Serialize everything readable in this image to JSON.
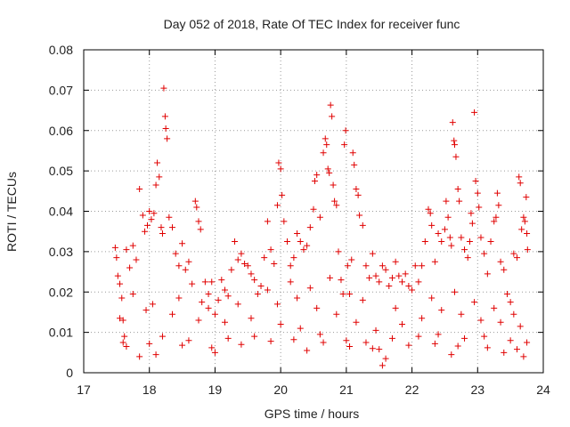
{
  "chart_data": {
    "type": "scatter",
    "title": "Day 052 of 2018, Rate Of TEC Index for receiver func",
    "xlabel": "GPS time / hours",
    "ylabel": "ROTI / TECUs",
    "xlim": [
      17,
      24
    ],
    "ylim": [
      0,
      0.08
    ],
    "grid": true,
    "marker": "+",
    "color": "#e00000",
    "x_ticks": [
      {
        "value": 17,
        "label": "17"
      },
      {
        "value": 18,
        "label": "18"
      },
      {
        "value": 19,
        "label": "19"
      },
      {
        "value": 20,
        "label": "20"
      },
      {
        "value": 21,
        "label": "21"
      },
      {
        "value": 22,
        "label": "22"
      },
      {
        "value": 23,
        "label": "23"
      },
      {
        "value": 24,
        "label": "24"
      }
    ],
    "y_ticks": [
      {
        "value": 0,
        "label": "0"
      },
      {
        "value": 0.01,
        "label": "0.01"
      },
      {
        "value": 0.02,
        "label": "0.02"
      },
      {
        "value": 0.03,
        "label": "0.03"
      },
      {
        "value": 0.04,
        "label": "0.04"
      },
      {
        "value": 0.05,
        "label": "0.05"
      },
      {
        "value": 0.06,
        "label": "0.06"
      },
      {
        "value": 0.07,
        "label": "0.07"
      },
      {
        "value": 0.08,
        "label": "0.08"
      }
    ],
    "points": [
      [
        17.48,
        0.031
      ],
      [
        17.5,
        0.0285
      ],
      [
        17.52,
        0.024
      ],
      [
        17.55,
        0.022
      ],
      [
        17.58,
        0.0185
      ],
      [
        17.6,
        0.013
      ],
      [
        17.62,
        0.009
      ],
      [
        17.65,
        0.0305
      ],
      [
        17.7,
        0.026
      ],
      [
        17.75,
        0.0315
      ],
      [
        17.8,
        0.028
      ],
      [
        17.85,
        0.0455
      ],
      [
        17.9,
        0.039
      ],
      [
        17.93,
        0.035
      ],
      [
        17.97,
        0.0365
      ],
      [
        18.0,
        0.04
      ],
      [
        18.03,
        0.038
      ],
      [
        18.07,
        0.0395
      ],
      [
        18.1,
        0.0465
      ],
      [
        18.12,
        0.052
      ],
      [
        18.15,
        0.0485
      ],
      [
        18.18,
        0.036
      ],
      [
        18.2,
        0.0345
      ],
      [
        18.22,
        0.0705
      ],
      [
        18.24,
        0.0635
      ],
      [
        18.25,
        0.0605
      ],
      [
        18.27,
        0.058
      ],
      [
        18.3,
        0.0385
      ],
      [
        18.35,
        0.036
      ],
      [
        18.4,
        0.0295
      ],
      [
        18.45,
        0.0265
      ],
      [
        18.5,
        0.032
      ],
      [
        18.55,
        0.0255
      ],
      [
        18.6,
        0.0275
      ],
      [
        18.65,
        0.022
      ],
      [
        18.7,
        0.0425
      ],
      [
        18.72,
        0.041
      ],
      [
        18.75,
        0.0375
      ],
      [
        18.78,
        0.0355
      ],
      [
        18.8,
        0.0175
      ],
      [
        18.85,
        0.0225
      ],
      [
        18.9,
        0.0195
      ],
      [
        18.95,
        0.0225
      ],
      [
        19.0,
        0.0145
      ],
      [
        19.05,
        0.018
      ],
      [
        19.1,
        0.023
      ],
      [
        19.15,
        0.0205
      ],
      [
        19.2,
        0.019
      ],
      [
        19.25,
        0.0255
      ],
      [
        19.3,
        0.0325
      ],
      [
        19.35,
        0.028
      ],
      [
        19.4,
        0.0295
      ],
      [
        19.45,
        0.027
      ],
      [
        19.5,
        0.0265
      ],
      [
        19.55,
        0.0245
      ],
      [
        19.6,
        0.023
      ],
      [
        19.65,
        0.0195
      ],
      [
        19.7,
        0.0215
      ],
      [
        19.75,
        0.0285
      ],
      [
        19.8,
        0.0375
      ],
      [
        19.85,
        0.0305
      ],
      [
        19.9,
        0.027
      ],
      [
        19.95,
        0.0415
      ],
      [
        19.97,
        0.052
      ],
      [
        20.0,
        0.0505
      ],
      [
        20.02,
        0.044
      ],
      [
        20.05,
        0.0375
      ],
      [
        20.1,
        0.0325
      ],
      [
        20.15,
        0.0265
      ],
      [
        20.2,
        0.0285
      ],
      [
        20.25,
        0.0345
      ],
      [
        20.3,
        0.0325
      ],
      [
        20.35,
        0.0305
      ],
      [
        20.4,
        0.0315
      ],
      [
        20.45,
        0.036
      ],
      [
        20.5,
        0.0405
      ],
      [
        20.52,
        0.0475
      ],
      [
        20.55,
        0.049
      ],
      [
        20.6,
        0.0385
      ],
      [
        20.65,
        0.0545
      ],
      [
        20.68,
        0.058
      ],
      [
        20.7,
        0.0565
      ],
      [
        20.72,
        0.0505
      ],
      [
        20.74,
        0.0495
      ],
      [
        20.76,
        0.0663
      ],
      [
        20.78,
        0.0635
      ],
      [
        20.8,
        0.0465
      ],
      [
        20.82,
        0.0425
      ],
      [
        20.85,
        0.0415
      ],
      [
        20.88,
        0.03
      ],
      [
        20.92,
        0.023
      ],
      [
        20.95,
        0.0195
      ],
      [
        20.97,
        0.0565
      ],
      [
        20.99,
        0.06
      ],
      [
        21.02,
        0.0265
      ],
      [
        21.05,
        0.0195
      ],
      [
        21.08,
        0.028
      ],
      [
        21.1,
        0.0545
      ],
      [
        21.12,
        0.0515
      ],
      [
        21.15,
        0.0455
      ],
      [
        21.18,
        0.044
      ],
      [
        21.2,
        0.039
      ],
      [
        21.25,
        0.0365
      ],
      [
        21.3,
        0.0265
      ],
      [
        21.35,
        0.0235
      ],
      [
        21.4,
        0.0295
      ],
      [
        21.45,
        0.024
      ],
      [
        21.5,
        0.0225
      ],
      [
        21.55,
        0.0265
      ],
      [
        21.6,
        0.0255
      ],
      [
        21.65,
        0.0215
      ],
      [
        21.7,
        0.0235
      ],
      [
        21.75,
        0.0275
      ],
      [
        21.8,
        0.024
      ],
      [
        21.85,
        0.0225
      ],
      [
        21.9,
        0.0245
      ],
      [
        21.95,
        0.0215
      ],
      [
        22.0,
        0.0205
      ],
      [
        22.05,
        0.0265
      ],
      [
        22.1,
        0.0225
      ],
      [
        22.15,
        0.0265
      ],
      [
        22.2,
        0.0325
      ],
      [
        22.25,
        0.0405
      ],
      [
        22.28,
        0.0395
      ],
      [
        22.3,
        0.0365
      ],
      [
        22.35,
        0.0275
      ],
      [
        22.4,
        0.0345
      ],
      [
        22.45,
        0.0325
      ],
      [
        22.5,
        0.0355
      ],
      [
        22.52,
        0.0425
      ],
      [
        22.55,
        0.0385
      ],
      [
        22.58,
        0.0335
      ],
      [
        22.6,
        0.0315
      ],
      [
        22.62,
        0.062
      ],
      [
        22.64,
        0.0575
      ],
      [
        22.65,
        0.0565
      ],
      [
        22.67,
        0.0535
      ],
      [
        22.7,
        0.0455
      ],
      [
        22.72,
        0.0425
      ],
      [
        22.75,
        0.0335
      ],
      [
        22.8,
        0.0305
      ],
      [
        22.85,
        0.0285
      ],
      [
        22.88,
        0.0325
      ],
      [
        22.9,
        0.0395
      ],
      [
        22.92,
        0.037
      ],
      [
        22.95,
        0.0645
      ],
      [
        22.97,
        0.0475
      ],
      [
        23.0,
        0.0445
      ],
      [
        23.02,
        0.041
      ],
      [
        23.05,
        0.0335
      ],
      [
        23.1,
        0.0295
      ],
      [
        23.15,
        0.0245
      ],
      [
        23.2,
        0.0325
      ],
      [
        23.25,
        0.0375
      ],
      [
        23.28,
        0.0385
      ],
      [
        23.3,
        0.0445
      ],
      [
        23.32,
        0.0415
      ],
      [
        23.35,
        0.0275
      ],
      [
        23.4,
        0.0255
      ],
      [
        23.45,
        0.0195
      ],
      [
        23.5,
        0.0175
      ],
      [
        23.55,
        0.0295
      ],
      [
        23.6,
        0.0285
      ],
      [
        23.63,
        0.0485
      ],
      [
        23.65,
        0.047
      ],
      [
        23.67,
        0.0355
      ],
      [
        23.7,
        0.0385
      ],
      [
        23.72,
        0.0375
      ],
      [
        23.74,
        0.0435
      ],
      [
        23.75,
        0.0345
      ],
      [
        23.76,
        0.0305
      ],
      [
        21.55,
        0.0018
      ],
      [
        21.6,
        0.0035
      ],
      [
        17.85,
        0.004
      ],
      [
        18.1,
        0.0045
      ],
      [
        19.0,
        0.005
      ],
      [
        20.4,
        0.0055
      ],
      [
        21.4,
        0.006
      ],
      [
        22.6,
        0.0045
      ],
      [
        23.4,
        0.005
      ],
      [
        23.7,
        0.004
      ],
      [
        17.6,
        0.0075
      ],
      [
        18.2,
        0.009
      ],
      [
        18.6,
        0.008
      ],
      [
        19.2,
        0.0085
      ],
      [
        19.6,
        0.009
      ],
      [
        20.0,
        0.012
      ],
      [
        20.3,
        0.011
      ],
      [
        20.6,
        0.0095
      ],
      [
        21.0,
        0.008
      ],
      [
        21.3,
        0.0075
      ],
      [
        21.7,
        0.0085
      ],
      [
        22.1,
        0.009
      ],
      [
        22.4,
        0.0095
      ],
      [
        22.8,
        0.0085
      ],
      [
        23.1,
        0.009
      ],
      [
        23.5,
        0.008
      ],
      [
        23.75,
        0.0075
      ],
      [
        17.55,
        0.0135
      ],
      [
        17.95,
        0.0155
      ],
      [
        18.35,
        0.0145
      ],
      [
        18.75,
        0.013
      ],
      [
        19.15,
        0.0125
      ],
      [
        19.55,
        0.0135
      ],
      [
        19.95,
        0.017
      ],
      [
        20.25,
        0.0185
      ],
      [
        20.55,
        0.016
      ],
      [
        20.85,
        0.0145
      ],
      [
        21.15,
        0.0125
      ],
      [
        21.45,
        0.0105
      ],
      [
        21.85,
        0.012
      ],
      [
        22.15,
        0.0135
      ],
      [
        22.45,
        0.0155
      ],
      [
        22.75,
        0.0145
      ],
      [
        23.05,
        0.013
      ],
      [
        23.35,
        0.0125
      ],
      [
        23.65,
        0.0115
      ],
      [
        17.75,
        0.0195
      ],
      [
        18.05,
        0.017
      ],
      [
        18.45,
        0.0185
      ],
      [
        18.9,
        0.016
      ],
      [
        19.35,
        0.017
      ],
      [
        19.8,
        0.0205
      ],
      [
        20.15,
        0.0225
      ],
      [
        20.45,
        0.021
      ],
      [
        20.75,
        0.0235
      ],
      [
        21.25,
        0.018
      ],
      [
        21.75,
        0.016
      ],
      [
        22.3,
        0.0185
      ],
      [
        22.65,
        0.02
      ],
      [
        22.95,
        0.0175
      ],
      [
        23.25,
        0.016
      ],
      [
        23.55,
        0.0145
      ],
      [
        17.65,
        0.0065
      ],
      [
        18.0,
        0.0072
      ],
      [
        18.5,
        0.0068
      ],
      [
        18.95,
        0.0062
      ],
      [
        19.4,
        0.007
      ],
      [
        19.85,
        0.0078
      ],
      [
        20.2,
        0.0082
      ],
      [
        20.65,
        0.0075
      ],
      [
        21.05,
        0.0065
      ],
      [
        21.5,
        0.0058
      ],
      [
        21.95,
        0.0068
      ],
      [
        22.35,
        0.0072
      ],
      [
        22.7,
        0.0066
      ],
      [
        23.15,
        0.0062
      ],
      [
        23.6,
        0.0058
      ]
    ]
  }
}
